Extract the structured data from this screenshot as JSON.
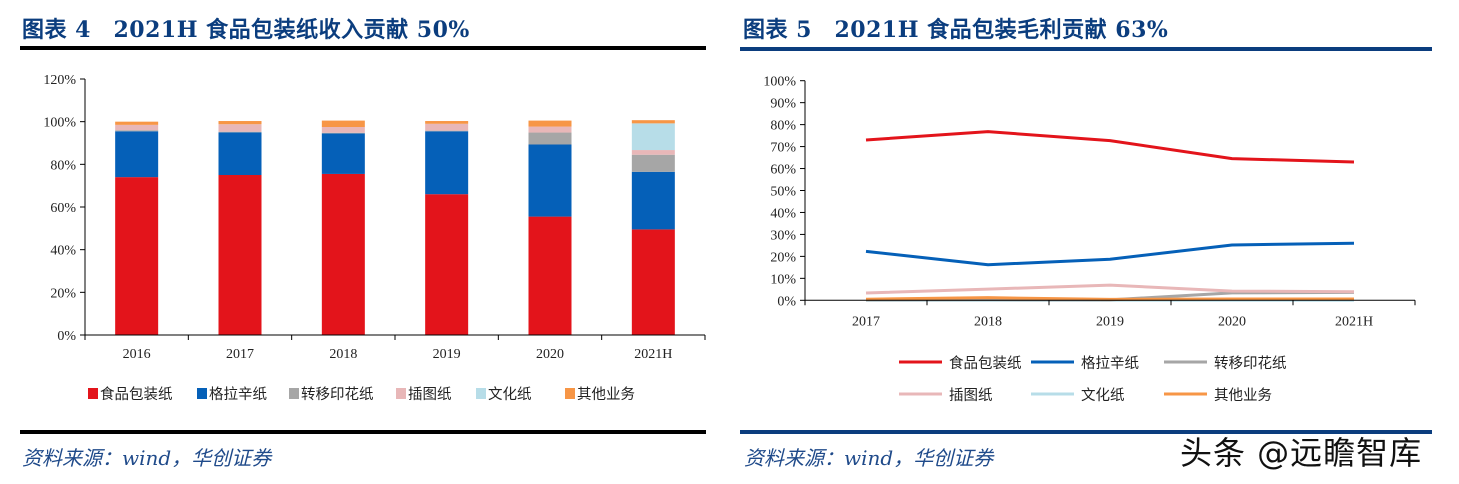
{
  "panels": [
    {
      "title": "图表 4　2021H 食品包装纸收入贡献 50%",
      "source": "资料来源：wind，华创证券",
      "rule_color": "#000000"
    },
    {
      "title": "图表 5　2021H 食品包装毛利贡献 63%",
      "source": "资料来源：wind，华创证券",
      "rule_color": "#0b3d7e"
    }
  ],
  "watermark": "头条 @远瞻智库",
  "chart_data": [
    {
      "type": "bar",
      "stacked": true,
      "title": "2021H 食品包装纸收入贡献 50%",
      "xlabel": "",
      "ylabel": "",
      "categories": [
        "2016",
        "2017",
        "2018",
        "2019",
        "2020",
        "2021H"
      ],
      "ylim": [
        0,
        120
      ],
      "yticks": [
        "0%",
        "20%",
        "40%",
        "60%",
        "80%",
        "100%",
        "120%"
      ],
      "ytick_values": [
        0,
        20,
        40,
        60,
        80,
        100,
        120
      ],
      "grid": false,
      "legend_position": "bottom",
      "series": [
        {
          "name": "食品包装纸",
          "color": "#e3141b",
          "values": [
            74.0,
            75.0,
            75.5,
            66.0,
            55.5,
            49.5
          ]
        },
        {
          "name": "格拉辛纸",
          "color": "#0560b8",
          "values": [
            21.5,
            20.0,
            19.0,
            29.5,
            33.8,
            27.0
          ]
        },
        {
          "name": "转移印花纸",
          "color": "#a6a6a6",
          "values": [
            0.5,
            0.3,
            0.3,
            0.3,
            5.6,
            8.0
          ]
        },
        {
          "name": "插图纸",
          "color": "#e8b7b8",
          "values": [
            2.5,
            3.5,
            2.7,
            3.2,
            2.8,
            2.2
          ]
        },
        {
          "name": "文化纸",
          "color": "#b7dde8",
          "values": [
            0,
            0,
            0,
            0,
            0,
            12.5
          ]
        },
        {
          "name": "其他业务",
          "color": "#f79646",
          "values": [
            1.5,
            1.5,
            3.0,
            1.3,
            2.8,
            1.5
          ]
        }
      ]
    },
    {
      "type": "line",
      "title": "2021H 食品包装毛利贡献 63%",
      "xlabel": "",
      "ylabel": "",
      "categories": [
        "2017",
        "2018",
        "2019",
        "2020",
        "2021H"
      ],
      "ylim": [
        0,
        100
      ],
      "yticks": [
        "0%",
        "10%",
        "20%",
        "30%",
        "40%",
        "50%",
        "60%",
        "70%",
        "80%",
        "90%",
        "100%"
      ],
      "ytick_values": [
        0,
        10,
        20,
        30,
        40,
        50,
        60,
        70,
        80,
        90,
        100
      ],
      "grid": false,
      "legend_position": "bottom",
      "series": [
        {
          "name": "食品包装纸",
          "color": "#e3141b",
          "values": [
            73.0,
            76.8,
            72.7,
            64.5,
            63.0
          ]
        },
        {
          "name": "格拉辛纸",
          "color": "#0560b8",
          "values": [
            22.3,
            16.2,
            18.7,
            25.2,
            26.0
          ]
        },
        {
          "name": "转移印花纸",
          "color": "#a6a6a6",
          "values": [
            0.2,
            0.3,
            0.2,
            3.4,
            3.6
          ]
        },
        {
          "name": "插图纸",
          "color": "#e8b7b8",
          "values": [
            3.3,
            5.1,
            6.9,
            4.2,
            3.9
          ]
        },
        {
          "name": "文化纸",
          "color": "#b7dde8",
          "values": [
            0,
            0,
            0,
            0,
            0
          ]
        },
        {
          "name": "其他业务",
          "color": "#f79646",
          "values": [
            0.5,
            1.2,
            0.4,
            0.6,
            0.6
          ]
        }
      ]
    }
  ]
}
